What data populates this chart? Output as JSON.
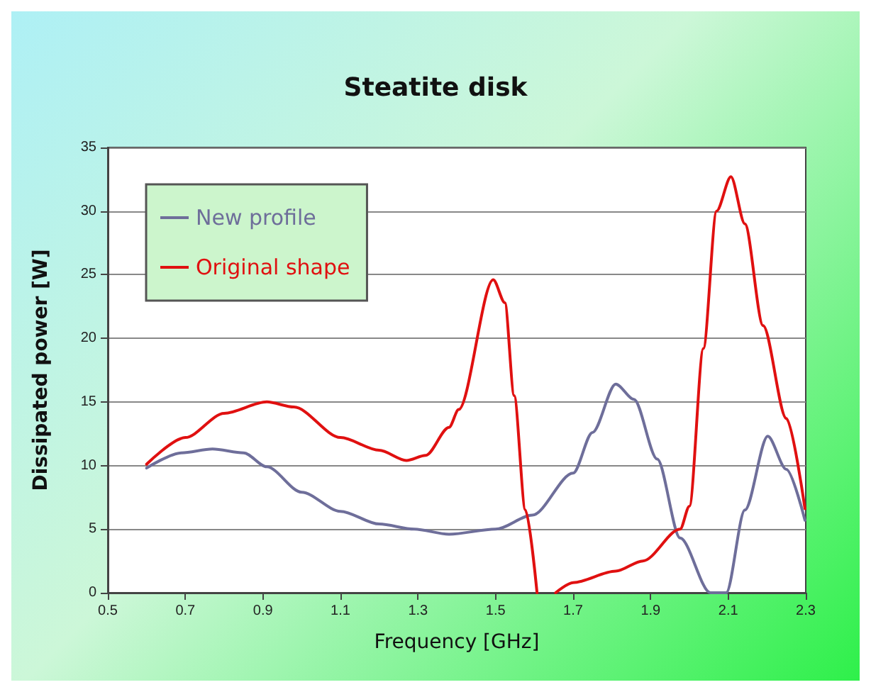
{
  "chart_data": {
    "type": "line",
    "title": "Steatite disk",
    "xlabel": "Frequency [GHz]",
    "ylabel": "Dissipated power [W]",
    "xlim": [
      0.5,
      2.3
    ],
    "xticks": [
      0.5,
      0.7,
      0.9,
      1.1,
      1.3,
      1.5,
      1.7,
      1.9,
      2.1,
      2.3
    ],
    "ylim": [
      0,
      35
    ],
    "yticks": [
      0,
      5,
      10,
      15,
      20,
      25,
      30,
      35
    ],
    "grid": "y",
    "legend": "top left",
    "marker": "none",
    "line_style": "solid",
    "series": [
      {
        "name": "New profile",
        "color": "#6e6e9a",
        "x": [
          0.6,
          0.69,
          0.77,
          0.85,
          0.91,
          1.0,
          1.1,
          1.2,
          1.29,
          1.38,
          1.5,
          1.595,
          1.7,
          1.75,
          1.81,
          1.857,
          1.917,
          1.976,
          2.054,
          2.095,
          2.143,
          2.202,
          2.25,
          2.298
        ],
        "values": [
          9.8,
          11,
          11.3,
          11,
          9.9,
          7.9,
          6.4,
          5.4,
          5,
          4.6,
          5,
          6.1,
          9.4,
          12.6,
          16.4,
          15.2,
          10.5,
          4.3,
          0,
          0,
          6.5,
          12.3,
          9.7,
          5.7
        ]
      },
      {
        "name": "Original shape",
        "color": "#e01010",
        "x": [
          0.6,
          0.7,
          0.8,
          0.91,
          0.98,
          1.1,
          1.2,
          1.27,
          1.32,
          1.38,
          1.405,
          1.494,
          1.524,
          1.548,
          1.577,
          1.607,
          1.63,
          1.655,
          1.7,
          1.81,
          1.88,
          1.976,
          2.0,
          2.036,
          2.07,
          2.107,
          2.143,
          2.19,
          2.25,
          2.298
        ],
        "values": [
          10.1,
          12.2,
          14.1,
          15,
          14.6,
          12.2,
          11.2,
          10.4,
          10.8,
          13,
          14.4,
          24.6,
          22.8,
          15.5,
          6.5,
          0,
          null,
          0,
          0.8,
          1.7,
          2.5,
          5,
          6.8,
          19.2,
          30,
          32.7,
          29,
          21,
          13.7,
          6.6
        ]
      }
    ]
  }
}
